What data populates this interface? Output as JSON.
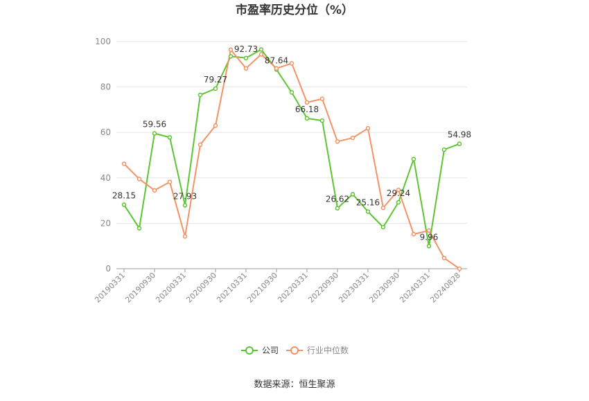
{
  "chart_data": {
    "type": "line",
    "title": "市盈率历史分位（%）",
    "x": [
      "20190331",
      "20190630",
      "20190930",
      "20191231",
      "20200331",
      "20200630",
      "20200930",
      "20201231",
      "20210331",
      "20210630",
      "20210930",
      "20211231",
      "20220331",
      "20220630",
      "20220930",
      "20221231",
      "20230331",
      "20230630",
      "20230930",
      "20231231",
      "20240331",
      "20240630",
      "20240828"
    ],
    "x_tick_labels": [
      "20190331",
      "20190930",
      "20200331",
      "20200930",
      "20210331",
      "20210930",
      "20220331",
      "20220930",
      "20230331",
      "20230930",
      "20240331",
      "20240828"
    ],
    "ylim": [
      0,
      100
    ],
    "yticks": [
      0,
      20,
      40,
      60,
      80,
      100
    ],
    "grid": true,
    "legend_position": "bottom",
    "series": [
      {
        "name": "公司",
        "color": "#5cc531",
        "values": [
          28.15,
          17.8,
          59.56,
          57.8,
          27.93,
          76.5,
          79.27,
          93.5,
          92.73,
          96.5,
          87.64,
          77.6,
          66.18,
          65.2,
          26.62,
          32.8,
          25.16,
          18.3,
          29.24,
          48.3,
          9.96,
          52.4,
          54.98
        ]
      },
      {
        "name": "行业中位数",
        "color": "#f39266",
        "values": [
          46.2,
          39.5,
          34.5,
          38.2,
          14.2,
          54.6,
          63.0,
          96.4,
          88.2,
          94.4,
          88.2,
          90.4,
          73.2,
          74.8,
          56.0,
          57.6,
          61.8,
          26.8,
          34.7,
          15.2,
          16.8,
          4.7,
          0.0
        ]
      }
    ],
    "data_labels": [
      {
        "series": 0,
        "index": 0,
        "text": "28.15"
      },
      {
        "series": 0,
        "index": 2,
        "text": "59.56"
      },
      {
        "series": 0,
        "index": 4,
        "text": "27.93"
      },
      {
        "series": 0,
        "index": 6,
        "text": "79.27"
      },
      {
        "series": 0,
        "index": 8,
        "text": "92.73"
      },
      {
        "series": 0,
        "index": 10,
        "text": "87.64"
      },
      {
        "series": 0,
        "index": 12,
        "text": "66.18"
      },
      {
        "series": 0,
        "index": 14,
        "text": "26.62"
      },
      {
        "series": 0,
        "index": 16,
        "text": "25.16"
      },
      {
        "series": 0,
        "index": 18,
        "text": "29.24"
      },
      {
        "series": 0,
        "index": 20,
        "text": "9.96"
      },
      {
        "series": 0,
        "index": 22,
        "text": "54.98"
      }
    ]
  },
  "source_text": "数据来源：恒生聚源"
}
